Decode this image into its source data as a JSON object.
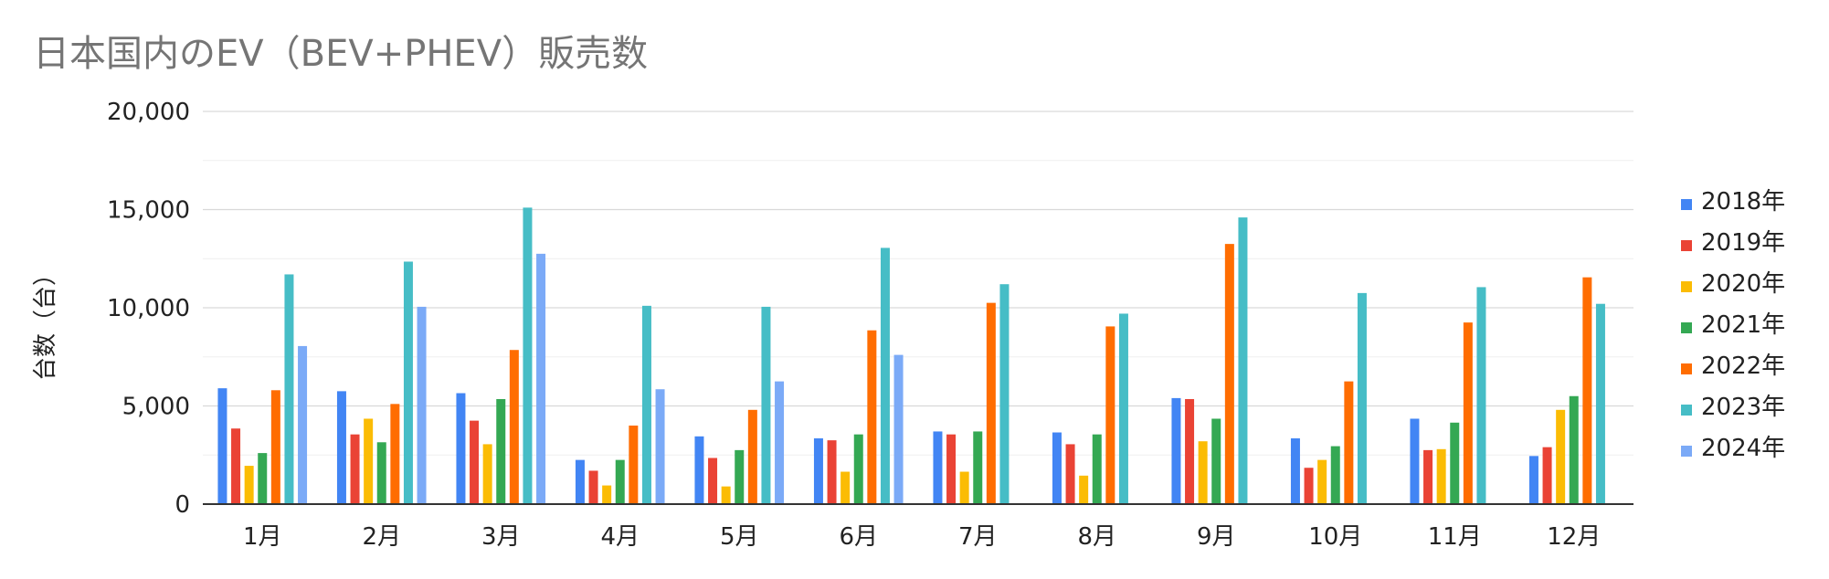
{
  "chart_data": {
    "type": "bar",
    "title": "日本国内のEV（BEV+PHEV）販売数",
    "ylabel": "台数（台）",
    "xlabel": "",
    "ylim": [
      0,
      20000
    ],
    "y_ticks": [
      0,
      5000,
      10000,
      15000,
      20000
    ],
    "y_tick_labels": [
      "0",
      "5,000",
      "10,000",
      "15,000",
      "20,000"
    ],
    "grid": true,
    "legend_position": "right",
    "categories": [
      "1月",
      "2月",
      "3月",
      "4月",
      "5月",
      "6月",
      "7月",
      "8月",
      "9月",
      "10月",
      "11月",
      "12月"
    ],
    "series": [
      {
        "name": "2018年",
        "color": "#4285f4",
        "values": [
          5900,
          5750,
          5650,
          2250,
          3450,
          3350,
          3700,
          3650,
          5400,
          3350,
          4350,
          2450
        ]
      },
      {
        "name": "2019年",
        "color": "#ea4335",
        "values": [
          3850,
          3550,
          4250,
          1700,
          2350,
          3250,
          3550,
          3050,
          5350,
          1850,
          2750,
          2900
        ]
      },
      {
        "name": "2020年",
        "color": "#fbbc04",
        "values": [
          1950,
          4350,
          3050,
          950,
          900,
          1650,
          1650,
          1450,
          3200,
          2250,
          2800,
          4800
        ]
      },
      {
        "name": "2021年",
        "color": "#34a853",
        "values": [
          2600,
          3150,
          5350,
          2250,
          2750,
          3550,
          3700,
          3550,
          4350,
          2950,
          4150,
          5500
        ]
      },
      {
        "name": "2022年",
        "color": "#ff6d01",
        "values": [
          5800,
          5100,
          7850,
          4000,
          4800,
          8850,
          10250,
          9050,
          13250,
          6250,
          9250,
          11550
        ]
      },
      {
        "name": "2023年",
        "color": "#46bdc6",
        "values": [
          11700,
          12350,
          15100,
          10100,
          10050,
          13050,
          11200,
          9700,
          14600,
          10750,
          11050,
          10200
        ]
      },
      {
        "name": "2024年",
        "color": "#7baaf7",
        "values": [
          8050,
          10050,
          12750,
          5850,
          6250,
          7600,
          null,
          null,
          null,
          null,
          null,
          null
        ]
      }
    ]
  }
}
